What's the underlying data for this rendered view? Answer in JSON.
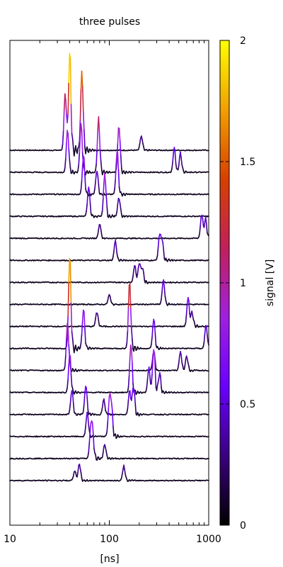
{
  "chart_data": {
    "type": "line",
    "title": "three pulses",
    "xlabel": "[ns]",
    "x_scale": "log",
    "xlim": [
      10,
      1000
    ],
    "x_ticks": [
      {
        "value": 10,
        "label": "10"
      },
      {
        "value": 100,
        "label": "100"
      },
      {
        "value": 1000,
        "label": "1000"
      }
    ],
    "colorbar": {
      "label": "signal [V]",
      "range": [
        0,
        2
      ],
      "ticks": [
        {
          "value": 0,
          "label": "0"
        },
        {
          "value": 0.5,
          "label": "0.5"
        },
        {
          "value": 1,
          "label": "1"
        },
        {
          "value": 1.5,
          "label": "1.5"
        },
        {
          "value": 2,
          "label": "2"
        }
      ],
      "palette": [
        "#000000",
        "#3a007f",
        "#6a00ff",
        "#a020e0",
        "#c0205a",
        "#d84000",
        "#f0a000",
        "#ffff00"
      ]
    },
    "grid": false,
    "stacked_traces": true,
    "traces": [
      {
        "peaks": [
          {
            "x": 36,
            "v": 1.2
          },
          {
            "x": 40,
            "v": 2.0
          },
          {
            "x": 53,
            "v": 1.65
          },
          {
            "x": 210,
            "v": 0.3
          }
        ]
      },
      {
        "peaks": [
          {
            "x": 38,
            "v": 0.9
          },
          {
            "x": 52,
            "v": 1.0
          },
          {
            "x": 78,
            "v": 1.1
          },
          {
            "x": 125,
            "v": 1.0
          },
          {
            "x": 450,
            "v": 0.5
          },
          {
            "x": 520,
            "v": 0.4
          }
        ]
      },
      {
        "peaks": [
          {
            "x": 55,
            "v": 0.8
          },
          {
            "x": 75,
            "v": 0.5
          },
          {
            "x": 120,
            "v": 0.9
          }
        ]
      },
      {
        "peaks": [
          {
            "x": 62,
            "v": 0.6
          },
          {
            "x": 90,
            "v": 0.9
          },
          {
            "x": 125,
            "v": 0.4
          }
        ]
      },
      {
        "peaks": [
          {
            "x": 80,
            "v": 0.3
          },
          {
            "x": 850,
            "v": 0.5
          },
          {
            "x": 930,
            "v": 0.4
          }
        ]
      },
      {
        "peaks": [
          {
            "x": 115,
            "v": 0.4
          },
          {
            "x": 320,
            "v": 0.5
          },
          {
            "x": 340,
            "v": 0.4
          }
        ]
      },
      {
        "peaks": [
          {
            "x": 180,
            "v": 0.35
          },
          {
            "x": 200,
            "v": 0.4
          },
          {
            "x": 215,
            "v": 0.3
          }
        ]
      },
      {
        "peaks": [
          {
            "x": 100,
            "v": 0.2
          },
          {
            "x": 350,
            "v": 0.5
          }
        ]
      },
      {
        "peaks": [
          {
            "x": 75,
            "v": 0.3
          },
          {
            "x": 620,
            "v": 0.6
          },
          {
            "x": 680,
            "v": 0.3
          }
        ]
      },
      {
        "peaks": [
          {
            "x": 40,
            "v": 1.9
          },
          {
            "x": 55,
            "v": 0.8
          },
          {
            "x": 160,
            "v": 1.4
          },
          {
            "x": 280,
            "v": 0.6
          },
          {
            "x": 940,
            "v": 0.5
          }
        ]
      },
      {
        "peaks": [
          {
            "x": 38,
            "v": 1.0
          },
          {
            "x": 280,
            "v": 0.4
          },
          {
            "x": 520,
            "v": 0.4
          },
          {
            "x": 600,
            "v": 0.3
          }
        ]
      },
      {
        "peaks": [
          {
            "x": 40,
            "v": 0.8
          },
          {
            "x": 165,
            "v": 1.0
          },
          {
            "x": 250,
            "v": 0.5
          },
          {
            "x": 280,
            "v": 0.9
          },
          {
            "x": 320,
            "v": 0.4
          }
        ]
      },
      {
        "peaks": [
          {
            "x": 42,
            "v": 0.5
          },
          {
            "x": 58,
            "v": 0.6
          },
          {
            "x": 88,
            "v": 0.3
          },
          {
            "x": 160,
            "v": 0.5
          },
          {
            "x": 175,
            "v": 0.6
          }
        ]
      },
      {
        "peaks": [
          {
            "x": 60,
            "v": 0.5
          },
          {
            "x": 100,
            "v": 0.7
          },
          {
            "x": 105,
            "v": 0.6
          }
        ]
      },
      {
        "peaks": [
          {
            "x": 65,
            "v": 0.6
          },
          {
            "x": 68,
            "v": 0.5
          },
          {
            "x": 90,
            "v": 0.3
          }
        ]
      },
      {
        "peaks": [
          {
            "x": 45,
            "v": 0.2
          },
          {
            "x": 50,
            "v": 0.35
          },
          {
            "x": 140,
            "v": 0.3
          }
        ]
      }
    ]
  },
  "texts": {
    "title": "three pulses",
    "xlabel": "[ns]",
    "cbar_label": "signal [V]"
  }
}
